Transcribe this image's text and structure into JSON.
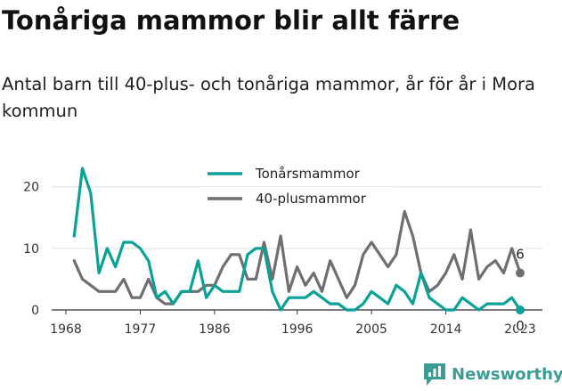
{
  "header": {
    "title": "Tonåriga mammor blir allt färre",
    "subtitle": "Antal barn till 40-plus- och tonåriga mammor, år för år i Mora kommun"
  },
  "brand": {
    "name": "Newsworthy",
    "icon": "newsworthy-logo-icon"
  },
  "chart_data": {
    "type": "line",
    "xlim": [
      1968,
      2023
    ],
    "ylim": [
      0,
      23
    ],
    "x_ticks": [
      1968,
      1977,
      1986,
      1996,
      2005,
      2014,
      2023
    ],
    "y_ticks": [
      0,
      10,
      20
    ],
    "grid": true,
    "legend_position": "top-center",
    "x": [
      1969,
      1970,
      1971,
      1972,
      1973,
      1974,
      1975,
      1976,
      1977,
      1978,
      1979,
      1980,
      1981,
      1982,
      1983,
      1984,
      1985,
      1986,
      1987,
      1988,
      1989,
      1990,
      1991,
      1992,
      1993,
      1994,
      1995,
      1996,
      1997,
      1998,
      1999,
      2000,
      2001,
      2002,
      2003,
      2004,
      2005,
      2006,
      2007,
      2008,
      2009,
      2010,
      2011,
      2012,
      2013,
      2014,
      2015,
      2016,
      2017,
      2018,
      2019,
      2020,
      2021,
      2022,
      2023
    ],
    "series": [
      {
        "name": "Tonårsmammor",
        "color": "#0aa296",
        "values": [
          12,
          23,
          19,
          6,
          10,
          7,
          11,
          11,
          10,
          8,
          2,
          3,
          1,
          3,
          3,
          8,
          2,
          4,
          3,
          3,
          3,
          9,
          10,
          10,
          3,
          0,
          2,
          2,
          2,
          3,
          2,
          1,
          1,
          0,
          0,
          1,
          3,
          2,
          1,
          4,
          3,
          1,
          6,
          2,
          1,
          0,
          0,
          2,
          1,
          0,
          1,
          1,
          1,
          2,
          0
        ],
        "end_label": "0"
      },
      {
        "name": "40-plusmammor",
        "color": "#6e6e73",
        "values": [
          8,
          5,
          4,
          3,
          3,
          3,
          5,
          2,
          2,
          5,
          2,
          1,
          1,
          3,
          3,
          3,
          4,
          4,
          7,
          9,
          9,
          5,
          5,
          11,
          5,
          12,
          3,
          7,
          4,
          6,
          3,
          8,
          5,
          2,
          4,
          9,
          11,
          9,
          7,
          9,
          16,
          12,
          6,
          3,
          4,
          6,
          9,
          5,
          13,
          5,
          7,
          8,
          6,
          10,
          6
        ],
        "end_label": "6"
      }
    ]
  }
}
